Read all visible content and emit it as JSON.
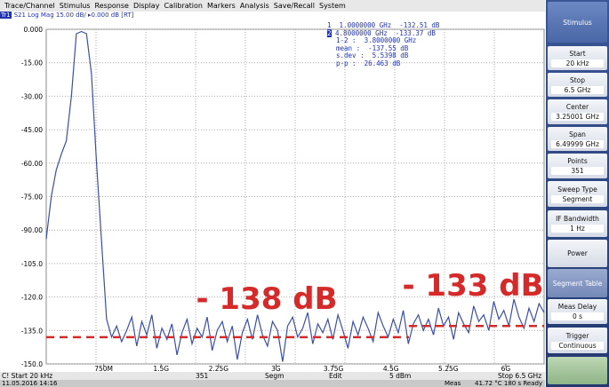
{
  "menu": [
    "Trace/Channel",
    "Stimulus",
    "Response",
    "Display",
    "Calibration",
    "Markers",
    "Analysis",
    "Save/Recall",
    "System"
  ],
  "trace_label": "Tr1",
  "trace_info": "S21 Log Mag 15.00 dB/ ▸0.000 dB [RT]",
  "markers": {
    "lines": [
      "1  1.0000000 GHz  -132.51 dB",
      "4.8000000 GHz  -133.37 dB",
      "1-2 :  3.8000000 GHz",
      "mean :  -137.55 dB",
      "s.dev :  5.5398 dB",
      "p-p :  26.463 dB"
    ],
    "active": "2"
  },
  "trace": {
    "color": "#3a4fa8",
    "ylim": [
      -150,
      0
    ],
    "xlim": [
      2e-05,
      6.5
    ],
    "yticks": [
      {
        "value": 0,
        "label": "0.000"
      },
      {
        "value": -15,
        "label": "-15.00"
      },
      {
        "value": -30,
        "label": "-30.00"
      },
      {
        "value": -45,
        "label": "-45.00"
      },
      {
        "value": -60,
        "label": "-60.00"
      },
      {
        "value": -75,
        "label": "-75.00"
      },
      {
        "value": -90,
        "label": "-90.00"
      },
      {
        "value": -105,
        "label": "-105.0"
      },
      {
        "value": -120,
        "label": "-120.0"
      },
      {
        "value": -135,
        "label": "-135.0"
      },
      {
        "value": -150,
        "label": "-150.0"
      }
    ],
    "xticks": [
      {
        "value": 0.75,
        "label": "750M"
      },
      {
        "value": 1.5,
        "label": "1.5G"
      },
      {
        "value": 2.25,
        "label": "2.25G"
      },
      {
        "value": 3,
        "label": "3G"
      },
      {
        "value": 3.75,
        "label": "3.75G"
      },
      {
        "value": 4.5,
        "label": "4.5G"
      },
      {
        "value": 5.25,
        "label": "5.25G"
      },
      {
        "value": 6,
        "label": "6G"
      }
    ],
    "values": [
      -94,
      -75,
      -63,
      -56,
      -50,
      -30,
      -2,
      -1,
      -2,
      -20,
      -60,
      -95,
      -130,
      -138,
      -133,
      -140,
      -135,
      -129,
      -142,
      -131,
      -137,
      -128,
      -143,
      -134,
      -139,
      -132,
      -146,
      -136,
      -130,
      -141,
      -134,
      -138,
      -129,
      -144,
      -135,
      -131,
      -140,
      -133,
      -148,
      -136,
      -130,
      -139,
      -128,
      -137,
      -142,
      -131,
      -135,
      -149,
      -133,
      -129,
      -138,
      -134,
      -127,
      -141,
      -132,
      -136,
      -130,
      -139,
      -128,
      -135,
      -143,
      -131,
      -137,
      -129,
      -134,
      -140,
      -127,
      -133,
      -138,
      -130,
      -136,
      -126,
      -141,
      -132,
      -128,
      -135,
      -130,
      -137,
      -125,
      -133,
      -129,
      -139,
      -127,
      -132,
      -136,
      -124,
      -131,
      -128,
      -135,
      -122,
      -130,
      -126,
      -133,
      -121,
      -129,
      -134,
      -125,
      -131,
      -123,
      -127
    ],
    "reference_lines": [
      {
        "label": "- 138 dB",
        "value": -138,
        "color": "#d42a2a"
      },
      {
        "label": "- 133 dB",
        "value": -133,
        "color": "#d42a2a"
      }
    ]
  },
  "panel": {
    "title": "Stimulus",
    "buttons": [
      {
        "label": "Start",
        "value": "20 kHz"
      },
      {
        "label": "Stop",
        "value": "6.5 GHz"
      },
      {
        "label": "Center",
        "value": "3.25001 GHz"
      },
      {
        "label": "Span",
        "value": "6.49999 GHz"
      },
      {
        "label": "Points",
        "value": "351"
      },
      {
        "label": "Sweep Type",
        "value": "Segment"
      },
      {
        "label": "IF Bandwidth",
        "value": "1 Hz"
      },
      {
        "label": "Power"
      },
      {
        "label": "Segment Table"
      },
      {
        "label": "Meas Delay",
        "value": "0 s"
      },
      {
        "label": "Trigger",
        "value": "Continuous"
      }
    ]
  },
  "status": {
    "items": [
      "C! Start 20 kHz",
      "351",
      "Segm",
      "Edit",
      "5 dBm",
      "Stop 6.5 GHz"
    ],
    "footer": [
      "11.05.2016 14:16",
      "Meas",
      "41.72 °C  180 s  Ready"
    ]
  }
}
